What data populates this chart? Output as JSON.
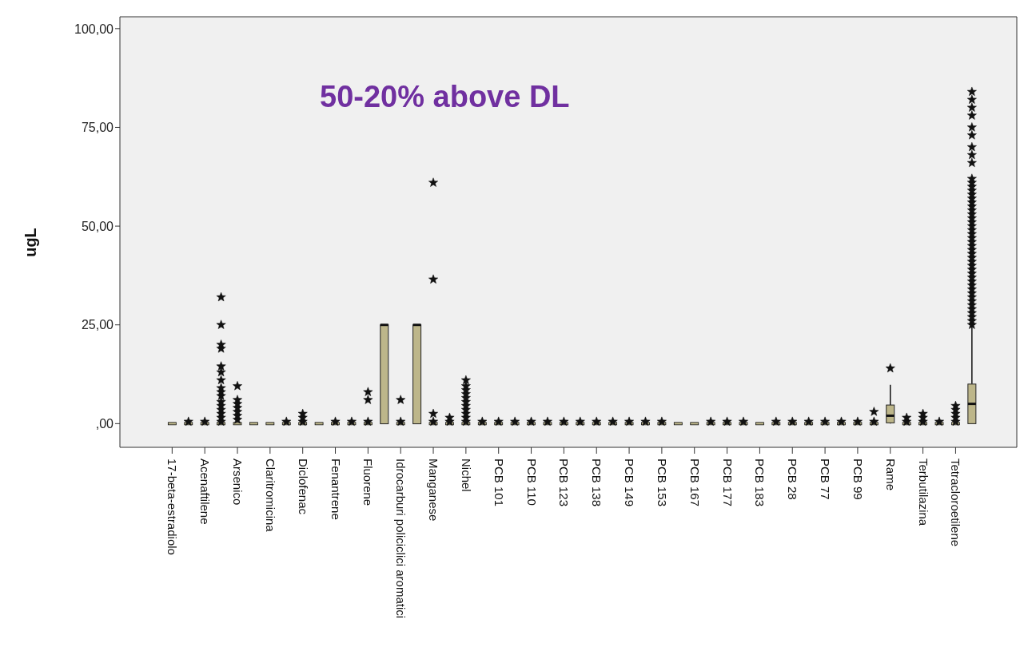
{
  "chart_data": {
    "type": "box",
    "title": "50-20% above DL",
    "ylabel": "ugL",
    "color": "#bdb68a",
    "marker": "star",
    "categories": [
      "17-beta-estradiolo",
      null,
      "Acenaftilene",
      null,
      "Arsenico",
      null,
      "Claritromicina",
      null,
      "Diclofenac",
      null,
      "Fenantrene",
      null,
      "Fluorene",
      null,
      "Idrocarburi policiclici aromatici",
      null,
      "Manganese",
      null,
      "Nichel",
      null,
      "PCB 101",
      null,
      "PCB 110",
      null,
      "PCB 123",
      null,
      "PCB 138",
      null,
      "PCB 149",
      null,
      "PCB 153",
      null,
      "PCB 167",
      null,
      "PCB 177",
      null,
      "PCB 183",
      null,
      "PCB 28",
      null,
      "PCB 77",
      null,
      "PCB 99",
      null,
      "Rame",
      null,
      "Terbutilazina",
      null,
      "Tetracloroetilene",
      null
    ],
    "ylim": [
      -6,
      103
    ],
    "yticks": [
      {
        "value": 0,
        "label": ",00"
      },
      {
        "value": 25,
        "label": "25,00"
      },
      {
        "value": 50,
        "label": "50,00"
      },
      {
        "value": 75,
        "label": "75,00"
      },
      {
        "value": 100,
        "label": "100,00"
      }
    ],
    "boxes": [
      {
        "low": 0,
        "q1": 0,
        "median": 0,
        "q3": 0,
        "high": 0
      },
      {
        "low": 0,
        "q1": 0,
        "median": 0,
        "q3": 0,
        "high": 0,
        "outliers": [
          0.5
        ]
      },
      {
        "low": 0,
        "q1": 0,
        "median": 0,
        "q3": 0,
        "high": 0,
        "outliers": [
          0.5
        ]
      },
      {
        "low": 0,
        "q1": 0,
        "median": 0,
        "q3": 0,
        "high": 0,
        "outliers": [
          0.5,
          1.5,
          2.5,
          3.5,
          4.5,
          5.5,
          7,
          8,
          9,
          11,
          13,
          14.5,
          19,
          20,
          25,
          32
        ]
      },
      {
        "low": 0,
        "q1": 0,
        "median": 0,
        "q3": 0,
        "high": 0,
        "outliers": [
          1,
          2,
          3,
          4,
          5,
          6,
          9.5
        ]
      },
      {
        "low": 0,
        "q1": 0,
        "median": 0,
        "q3": 0,
        "high": 0
      },
      {
        "low": 0,
        "q1": 0,
        "median": 0,
        "q3": 0,
        "high": 0
      },
      {
        "low": 0,
        "q1": 0,
        "median": 0,
        "q3": 0,
        "high": 0,
        "outliers": [
          0.5
        ]
      },
      {
        "low": 0,
        "q1": 0,
        "median": 0,
        "q3": 0,
        "high": 0,
        "outliers": [
          0.5,
          1.5,
          2.5
        ]
      },
      {
        "low": 0,
        "q1": 0,
        "median": 0,
        "q3": 0,
        "high": 0
      },
      {
        "low": 0,
        "q1": 0,
        "median": 0,
        "q3": 0,
        "high": 0,
        "outliers": [
          0.5
        ]
      },
      {
        "low": 0,
        "q1": 0,
        "median": 0,
        "q3": 0,
        "high": 0,
        "outliers": [
          0.5
        ]
      },
      {
        "low": 0,
        "q1": 0,
        "median": 0,
        "q3": 0,
        "high": 0,
        "outliers": [
          0.5,
          6,
          8
        ]
      },
      {
        "low": 0,
        "q1": 0,
        "median": 25,
        "q3": 25,
        "high": 25
      },
      {
        "low": 0,
        "q1": 0,
        "median": 0,
        "q3": 0,
        "high": 0,
        "outliers": [
          0.5,
          6
        ]
      },
      {
        "low": 0,
        "q1": 0,
        "median": 25,
        "q3": 25,
        "high": 25
      },
      {
        "low": 0,
        "q1": 0,
        "median": 0,
        "q3": 0,
        "high": 0,
        "outliers": [
          0.5,
          2.5,
          36.5,
          61
        ]
      },
      {
        "low": 0,
        "q1": 0,
        "median": 0,
        "q3": 0,
        "high": 0,
        "outliers": [
          0.5,
          1.5
        ]
      },
      {
        "low": 0,
        "q1": 0,
        "median": 0,
        "q3": 0,
        "high": 0,
        "outliers": [
          0.5,
          1.5,
          2.5,
          3.5,
          4.5,
          5.5,
          6.5,
          7.5,
          8.5,
          9.5,
          11
        ]
      },
      {
        "low": 0,
        "q1": 0,
        "median": 0,
        "q3": 0,
        "high": 0,
        "outliers": [
          0.5
        ]
      },
      {
        "low": 0,
        "q1": 0,
        "median": 0,
        "q3": 0,
        "high": 0,
        "outliers": [
          0.5
        ]
      },
      {
        "low": 0,
        "q1": 0,
        "median": 0,
        "q3": 0,
        "high": 0,
        "outliers": [
          0.5
        ]
      },
      {
        "low": 0,
        "q1": 0,
        "median": 0,
        "q3": 0,
        "high": 0,
        "outliers": [
          0.5
        ]
      },
      {
        "low": 0,
        "q1": 0,
        "median": 0,
        "q3": 0,
        "high": 0,
        "outliers": [
          0.5
        ]
      },
      {
        "low": 0,
        "q1": 0,
        "median": 0,
        "q3": 0,
        "high": 0,
        "outliers": [
          0.5
        ]
      },
      {
        "low": 0,
        "q1": 0,
        "median": 0,
        "q3": 0,
        "high": 0,
        "outliers": [
          0.5
        ]
      },
      {
        "low": 0,
        "q1": 0,
        "median": 0,
        "q3": 0,
        "high": 0,
        "outliers": [
          0.5
        ]
      },
      {
        "low": 0,
        "q1": 0,
        "median": 0,
        "q3": 0,
        "high": 0,
        "outliers": [
          0.5
        ]
      },
      {
        "low": 0,
        "q1": 0,
        "median": 0,
        "q3": 0,
        "high": 0,
        "outliers": [
          0.5
        ]
      },
      {
        "low": 0,
        "q1": 0,
        "median": 0,
        "q3": 0,
        "high": 0,
        "outliers": [
          0.5
        ]
      },
      {
        "low": 0,
        "q1": 0,
        "median": 0,
        "q3": 0,
        "high": 0,
        "outliers": [
          0.5
        ]
      },
      {
        "low": 0,
        "q1": 0,
        "median": 0,
        "q3": 0,
        "high": 0
      },
      {
        "low": 0,
        "q1": 0,
        "median": 0,
        "q3": 0,
        "high": 0
      },
      {
        "low": 0,
        "q1": 0,
        "median": 0,
        "q3": 0,
        "high": 0,
        "outliers": [
          0.5
        ]
      },
      {
        "low": 0,
        "q1": 0,
        "median": 0,
        "q3": 0,
        "high": 0,
        "outliers": [
          0.5
        ]
      },
      {
        "low": 0,
        "q1": 0,
        "median": 0,
        "q3": 0,
        "high": 0,
        "outliers": [
          0.5
        ]
      },
      {
        "low": 0,
        "q1": 0,
        "median": 0,
        "q3": 0,
        "high": 0
      },
      {
        "low": 0,
        "q1": 0,
        "median": 0,
        "q3": 0,
        "high": 0,
        "outliers": [
          0.5
        ]
      },
      {
        "low": 0,
        "q1": 0,
        "median": 0,
        "q3": 0,
        "high": 0,
        "outliers": [
          0.5
        ]
      },
      {
        "low": 0,
        "q1": 0,
        "median": 0,
        "q3": 0,
        "high": 0,
        "outliers": [
          0.5
        ]
      },
      {
        "low": 0,
        "q1": 0,
        "median": 0,
        "q3": 0,
        "high": 0,
        "outliers": [
          0.5
        ]
      },
      {
        "low": 0,
        "q1": 0,
        "median": 0,
        "q3": 0,
        "high": 0,
        "outliers": [
          0.5
        ]
      },
      {
        "low": 0,
        "q1": 0,
        "median": 0,
        "q3": 0,
        "high": 0,
        "outliers": [
          0.5
        ]
      },
      {
        "low": 0,
        "q1": 0,
        "median": 0,
        "q3": 0,
        "high": 0,
        "outliers": [
          0.5,
          3
        ]
      },
      {
        "low": 0,
        "q1": 0.2,
        "median": 2,
        "q3": 4.7,
        "high": 9.8,
        "outliers": [
          14
        ]
      },
      {
        "low": 0,
        "q1": 0,
        "median": 0,
        "q3": 0,
        "high": 0,
        "outliers": [
          0.5,
          1.5
        ]
      },
      {
        "low": 0,
        "q1": 0,
        "median": 0,
        "q3": 0,
        "high": 0,
        "outliers": [
          0.5,
          1.5,
          2.5
        ]
      },
      {
        "low": 0,
        "q1": 0,
        "median": 0,
        "q3": 0,
        "high": 0,
        "outliers": [
          0.5
        ]
      },
      {
        "low": 0,
        "q1": 0,
        "median": 0,
        "q3": 0,
        "high": 0,
        "outliers": [
          0.5,
          1.5,
          2.5,
          3.5,
          4.5
        ]
      },
      {
        "low": 0,
        "q1": 0,
        "median": 5,
        "q3": 10,
        "high": 24.5,
        "outliers": [
          25,
          26,
          27,
          28,
          29,
          30,
          31,
          32,
          33,
          34,
          35,
          36,
          37,
          38,
          39,
          40,
          41,
          42,
          43,
          44,
          45,
          46,
          47,
          48,
          49,
          50,
          51,
          52,
          53,
          54,
          55,
          56,
          57,
          58,
          59,
          60,
          61,
          62,
          66,
          68,
          70,
          73,
          75,
          78,
          80,
          82,
          84
        ]
      }
    ]
  }
}
